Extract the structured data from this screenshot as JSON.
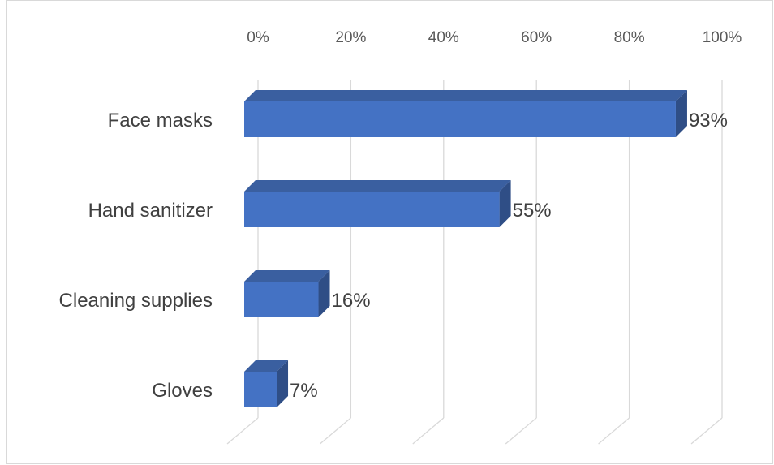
{
  "chart_data": {
    "type": "bar",
    "orientation": "horizontal",
    "style": "3d",
    "categories": [
      "Face masks",
      "Hand sanitizer",
      "Cleaning supplies",
      "Gloves"
    ],
    "values": [
      93,
      55,
      16,
      7
    ],
    "data_labels": [
      "93%",
      "55%",
      "16%",
      "7%"
    ],
    "xlim": [
      0,
      100
    ],
    "xticks": [
      0,
      20,
      40,
      60,
      80,
      100
    ],
    "xtick_labels": [
      "0%",
      "20%",
      "40%",
      "60%",
      "80%",
      "100%"
    ],
    "xaxis_position": "top",
    "grid": true,
    "legend": "none",
    "title": "",
    "xlabel": "",
    "ylabel": ""
  },
  "colors": {
    "bar_front": "#4472C4",
    "bar_top": "#3A5FA0",
    "bar_side": "#2F4E86",
    "grid": "#d9d9d9"
  }
}
